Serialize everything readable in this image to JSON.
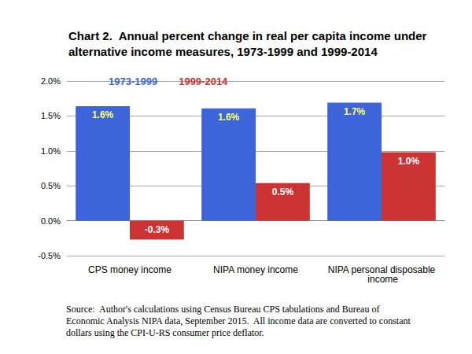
{
  "chart_data": {
    "type": "bar",
    "title": "Chart 2.  Annual percent change in real per capita income under\nalternative income measures, 1973-1999 and 1999-2014",
    "annotations": [
      "Source:  Author's calculations using Census Bureau CPS tabulations and Bureau of Economic Analysis NIPA data, September 2015.  All income data are converted to constant dollars using the CPI-U-RS consumer price deflator."
    ],
    "categories": [
      "CPS money income",
      "NIPA money income",
      "NIPA personal disposable income"
    ],
    "series": [
      {
        "name": "1973-1999",
        "color": "#3d64d8",
        "values": [
          1.64,
          1.61,
          1.69
        ],
        "value_labels": [
          "1.6%",
          "1.6%",
          "1.7%"
        ]
      },
      {
        "name": "1999-2014",
        "color": "#cc3333",
        "values": [
          -0.27,
          0.54,
          0.98
        ],
        "value_labels": [
          "-0.3%",
          "0.5%",
          "1.0%"
        ]
      }
    ],
    "ylim": [
      -0.5,
      2.0
    ],
    "yticks": [
      {
        "value": -0.5,
        "label": "-0.5%"
      },
      {
        "value": 0,
        "label": "0.0%"
      },
      {
        "value": 0.5,
        "label": "0.5%"
      },
      {
        "value": 1.0,
        "label": "1.0%"
      },
      {
        "value": 1.5,
        "label": "1.5%"
      },
      {
        "value": 2.0,
        "label": "2.0%"
      }
    ],
    "grid": true,
    "legend": "upper left",
    "data_labels": true
  }
}
